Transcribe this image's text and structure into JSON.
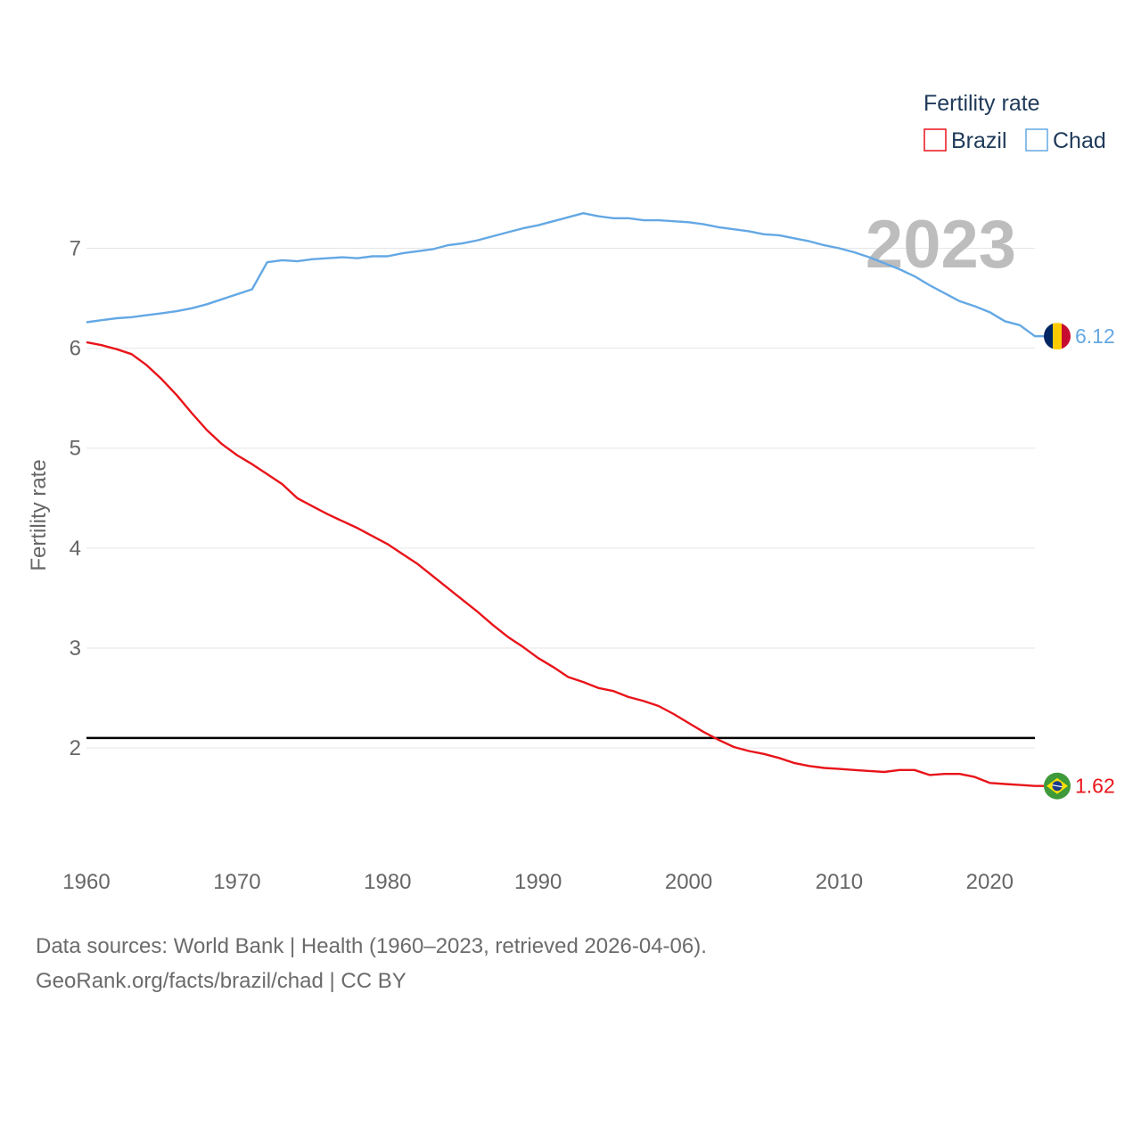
{
  "chart_data": {
    "type": "line",
    "ylabel": "Fertility rate",
    "xlabel": "",
    "xlim": [
      1960,
      2023
    ],
    "ylim": [
      1.1,
      7.7
    ],
    "yticks": [
      2,
      3,
      4,
      5,
      6,
      7
    ],
    "xticks": [
      1960,
      1970,
      1980,
      1990,
      2000,
      2010,
      2020
    ],
    "current_year": "2023",
    "legend": {
      "title": "Fertility rate",
      "position": "top-right"
    },
    "reference_line": {
      "y": 2.1,
      "color": "#000000"
    },
    "x": [
      1960,
      1961,
      1962,
      1963,
      1964,
      1965,
      1966,
      1967,
      1968,
      1969,
      1970,
      1971,
      1972,
      1973,
      1974,
      1975,
      1976,
      1977,
      1978,
      1979,
      1980,
      1981,
      1982,
      1983,
      1984,
      1985,
      1986,
      1987,
      1988,
      1989,
      1990,
      1991,
      1992,
      1993,
      1994,
      1995,
      1996,
      1997,
      1998,
      1999,
      2000,
      2001,
      2002,
      2003,
      2004,
      2005,
      2006,
      2007,
      2008,
      2009,
      2010,
      2011,
      2012,
      2013,
      2014,
      2015,
      2016,
      2017,
      2018,
      2019,
      2020,
      2021,
      2022,
      2023
    ],
    "series": [
      {
        "name": "Brazil",
        "color": "#e8141a",
        "end_label": "1.62",
        "flag": "brazil",
        "values": [
          6.06,
          6.03,
          5.99,
          5.94,
          5.83,
          5.69,
          5.53,
          5.35,
          5.18,
          5.04,
          4.93,
          4.84,
          4.74,
          4.64,
          4.5,
          4.42,
          4.34,
          4.27,
          4.2,
          4.12,
          4.04,
          3.94,
          3.84,
          3.72,
          3.6,
          3.48,
          3.36,
          3.23,
          3.11,
          3.01,
          2.9,
          2.81,
          2.71,
          2.66,
          2.6,
          2.57,
          2.51,
          2.47,
          2.42,
          2.34,
          2.25,
          2.16,
          2.08,
          2.01,
          1.97,
          1.94,
          1.9,
          1.85,
          1.82,
          1.8,
          1.79,
          1.78,
          1.77,
          1.76,
          1.78,
          1.78,
          1.73,
          1.74,
          1.74,
          1.71,
          1.65,
          1.64,
          1.63,
          1.62
        ]
      },
      {
        "name": "Chad",
        "color": "#64a8e4",
        "end_label": "6.12",
        "flag": "chad",
        "values": [
          6.26,
          6.28,
          6.3,
          6.31,
          6.33,
          6.35,
          6.37,
          6.4,
          6.44,
          6.49,
          6.54,
          6.59,
          6.86,
          6.88,
          6.87,
          6.89,
          6.9,
          6.91,
          6.9,
          6.92,
          6.92,
          6.95,
          6.97,
          6.99,
          7.03,
          7.05,
          7.08,
          7.12,
          7.16,
          7.2,
          7.23,
          7.27,
          7.31,
          7.35,
          7.32,
          7.3,
          7.3,
          7.28,
          7.28,
          7.27,
          7.26,
          7.24,
          7.21,
          7.19,
          7.17,
          7.14,
          7.13,
          7.1,
          7.07,
          7.03,
          7.0,
          6.96,
          6.91,
          6.85,
          6.79,
          6.72,
          6.63,
          6.55,
          6.47,
          6.42,
          6.36,
          6.27,
          6.23,
          6.12
        ]
      }
    ]
  },
  "footer": {
    "line1": "Data sources: World Bank | Health (1960–2023, retrieved 2026-04-06).",
    "line2": "GeoRank.org/facts/brazil/chad | CC BY"
  }
}
